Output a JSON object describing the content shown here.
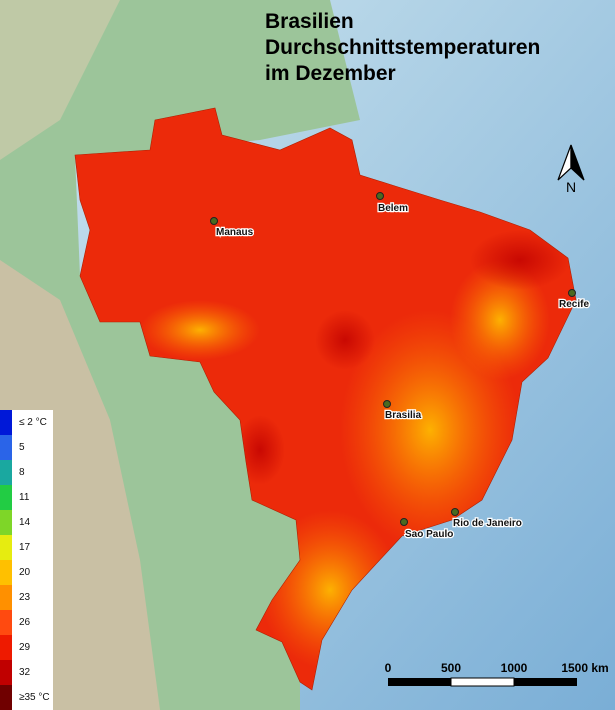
{
  "title": [
    "Brasilien",
    "Durchschnittstemperaturen",
    "im Dezember"
  ],
  "north": "N",
  "cities": [
    {
      "name": "Manaus"
    },
    {
      "name": "Belem"
    },
    {
      "name": "Recife"
    },
    {
      "name": "Brasilia"
    },
    {
      "name": "Sao Paulo"
    },
    {
      "name": "Rio de Janeiro"
    }
  ],
  "legend": [
    {
      "label": "≤ 2 °C",
      "color": "#0018d8"
    },
    {
      "label": "5",
      "color": "#2a64e8"
    },
    {
      "label": "8",
      "color": "#1aa8a0"
    },
    {
      "label": "11",
      "color": "#22cc44"
    },
    {
      "label": "14",
      "color": "#7ed628"
    },
    {
      "label": "17",
      "color": "#e6ec10"
    },
    {
      "label": "20",
      "color": "#ffc000"
    },
    {
      "label": "23",
      "color": "#ff9000"
    },
    {
      "label": "26",
      "color": "#ff4a10"
    },
    {
      "label": "29",
      "color": "#ee1a00"
    },
    {
      "label": "32",
      "color": "#c00000"
    },
    {
      "label": "≥35 °C",
      "color": "#700000"
    }
  ],
  "scale_bar": [
    "0",
    "500",
    "1000",
    "1500 km"
  ]
}
